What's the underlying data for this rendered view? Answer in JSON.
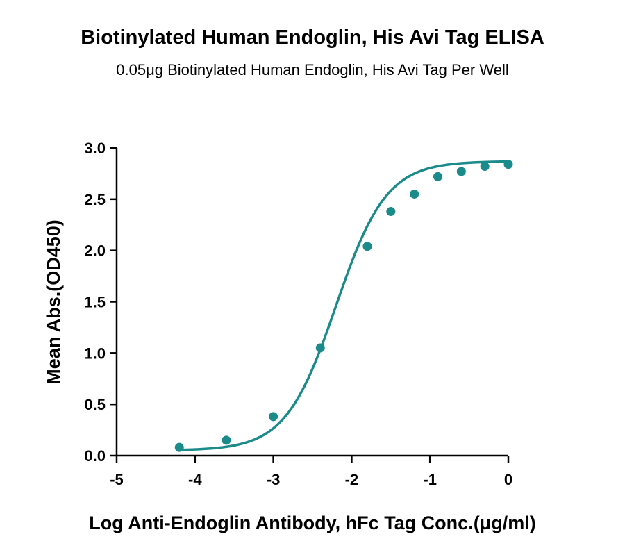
{
  "chart_data": {
    "type": "scatter",
    "title": "Biotinylated Human Endoglin, His Avi Tag ELISA",
    "subtitle": "0.05μg Biotinylated Human Endoglin, His Avi Tag Per Well",
    "xlabel": "Log Anti-Endoglin Antibody, hFc Tag Conc.(μg/ml)",
    "ylabel": "Mean Abs.(OD450)",
    "xlim": [
      -5,
      0
    ],
    "ylim": [
      0,
      3.0
    ],
    "xticks": [
      -5,
      -4,
      -3,
      -2,
      -1,
      0
    ],
    "yticks": [
      0.0,
      0.5,
      1.0,
      1.5,
      2.0,
      2.5,
      3.0
    ],
    "xtick_labels": [
      "-5",
      "-4",
      "-3",
      "-2",
      "-1",
      "0"
    ],
    "ytick_labels": [
      "0.0",
      "0.5",
      "1.0",
      "1.5",
      "2.0",
      "2.5",
      "3.0"
    ],
    "grid": false,
    "legend": "none",
    "color": "#1a8a8a",
    "series": [
      {
        "x": [
          -4.2,
          -3.6,
          -3.0,
          -2.4,
          -1.8,
          -1.5,
          -1.2,
          -0.9,
          -0.6,
          -0.3,
          0.0
        ],
        "y": [
          0.08,
          0.15,
          0.38,
          1.05,
          2.04,
          2.38,
          2.55,
          2.72,
          2.77,
          2.82,
          2.84
        ]
      }
    ],
    "fit": {
      "model": "4PL",
      "bottom": 0.05,
      "top": 2.87,
      "logEC50": -2.2,
      "hill": 1.35
    }
  }
}
